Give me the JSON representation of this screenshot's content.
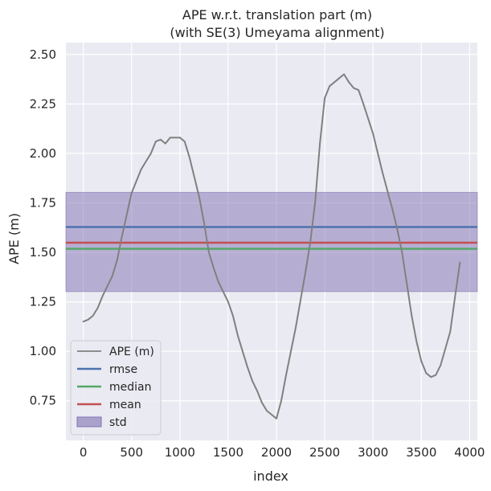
{
  "chart_data": {
    "type": "line",
    "title": "APE w.r.t. translation part (m)",
    "subtitle": "(with SE(3) Umeyama alignment)",
    "xlabel": "index",
    "ylabel": "APE (m)",
    "xlim": [
      -180,
      4080
    ],
    "ylim": [
      0.55,
      2.56
    ],
    "xticks": [
      0,
      500,
      1000,
      1500,
      2000,
      2500,
      3000,
      3500,
      4000
    ],
    "yticks": [
      0.75,
      1.0,
      1.25,
      1.5,
      1.75,
      2.0,
      2.25,
      2.5
    ],
    "xtick_labels": [
      "0",
      "500",
      "1000",
      "1500",
      "2000",
      "2500",
      "3000",
      "3500",
      "4000"
    ],
    "ytick_labels": [
      "0.75",
      "1.00",
      "1.25",
      "1.50",
      "1.75",
      "2.00",
      "2.25",
      "2.50"
    ],
    "grid": true,
    "legend_position": "lower-left",
    "colors": {
      "ape": "#808080",
      "rmse": "#4c72b0",
      "median": "#55a868",
      "mean": "#c44e52",
      "std": "#8172b2",
      "background": "#eaeaf2"
    },
    "series": [
      {
        "name": "APE (m)",
        "x": [
          0,
          50,
          100,
          150,
          200,
          250,
          300,
          350,
          400,
          500,
          600,
          700,
          750,
          800,
          850,
          900,
          1000,
          1050,
          1100,
          1200,
          1250,
          1300,
          1350,
          1400,
          1450,
          1500,
          1550,
          1600,
          1650,
          1700,
          1750,
          1800,
          1850,
          1900,
          1950,
          2000,
          2050,
          2100,
          2200,
          2300,
          2350,
          2400,
          2450,
          2500,
          2550,
          2600,
          2650,
          2700,
          2750,
          2800,
          2850,
          2900,
          3000,
          3100,
          3200,
          3250,
          3300,
          3350,
          3400,
          3450,
          3500,
          3550,
          3600,
          3650,
          3700,
          3800,
          3850,
          3900
        ],
        "values": [
          1.15,
          1.16,
          1.18,
          1.22,
          1.28,
          1.33,
          1.38,
          1.46,
          1.58,
          1.8,
          1.92,
          2.0,
          2.06,
          2.07,
          2.05,
          2.08,
          2.08,
          2.06,
          1.98,
          1.78,
          1.65,
          1.5,
          1.42,
          1.35,
          1.3,
          1.25,
          1.18,
          1.08,
          1.0,
          0.92,
          0.85,
          0.8,
          0.74,
          0.7,
          0.68,
          0.66,
          0.75,
          0.88,
          1.12,
          1.4,
          1.55,
          1.75,
          2.05,
          2.28,
          2.34,
          2.36,
          2.38,
          2.4,
          2.36,
          2.33,
          2.32,
          2.25,
          2.1,
          1.9,
          1.72,
          1.62,
          1.5,
          1.34,
          1.18,
          1.05,
          0.95,
          0.89,
          0.87,
          0.88,
          0.93,
          1.1,
          1.28,
          1.45
        ]
      }
    ],
    "reference_lines": [
      {
        "name": "rmse",
        "value": 1.628
      },
      {
        "name": "median",
        "value": 1.518
      },
      {
        "name": "mean",
        "value": 1.549
      }
    ],
    "std_band": {
      "name": "std",
      "range": [
        1.302,
        1.803
      ]
    },
    "legend": [
      "APE (m)",
      "rmse",
      "median",
      "mean",
      "std"
    ]
  }
}
